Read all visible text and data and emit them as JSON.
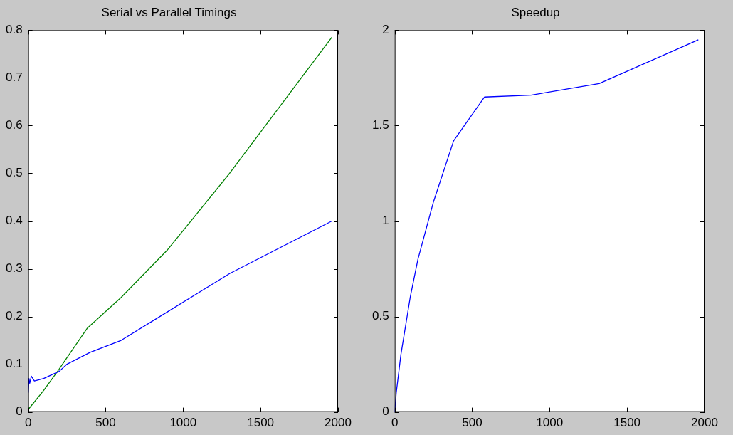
{
  "chart_data": [
    {
      "type": "line",
      "title": "Serial vs Parallel Timings",
      "xlim": [
        0,
        2000
      ],
      "xticks": [
        0,
        500,
        1000,
        1500,
        2000
      ],
      "ylim": [
        0,
        0.8
      ],
      "yticks": [
        0,
        0.1,
        0.2,
        0.3,
        0.4,
        0.5,
        0.6,
        0.7,
        0.8
      ],
      "legend": false,
      "marker": "none",
      "series": [
        {
          "color": "#0000ff",
          "x": [
            0,
            5,
            10,
            20,
            40,
            100,
            200,
            250,
            400,
            600,
            900,
            1300,
            1960
          ],
          "values": [
            0.04,
            0.07,
            0.06,
            0.075,
            0.065,
            0.07,
            0.085,
            0.1,
            0.125,
            0.15,
            0.21,
            0.29,
            0.4
          ]
        },
        {
          "color": "#008000",
          "x": [
            0,
            100,
            200,
            380,
            600,
            900,
            1300,
            1960
          ],
          "values": [
            0.005,
            0.045,
            0.09,
            0.175,
            0.24,
            0.34,
            0.5,
            0.785
          ]
        }
      ]
    },
    {
      "type": "line",
      "title": "Speedup",
      "xlim": [
        0,
        2000
      ],
      "xticks": [
        0,
        500,
        1000,
        1500,
        2000
      ],
      "ylim": [
        0,
        2
      ],
      "yticks": [
        0,
        0.5,
        1,
        1.5,
        2
      ],
      "legend": false,
      "marker": "none",
      "series": [
        {
          "color": "#0000ff",
          "x": [
            0,
            10,
            40,
            100,
            150,
            250,
            380,
            580,
            880,
            1320,
            1960
          ],
          "values": [
            0,
            0.1,
            0.3,
            0.6,
            0.8,
            1.1,
            1.42,
            1.65,
            1.66,
            1.72,
            1.95
          ]
        }
      ]
    }
  ]
}
